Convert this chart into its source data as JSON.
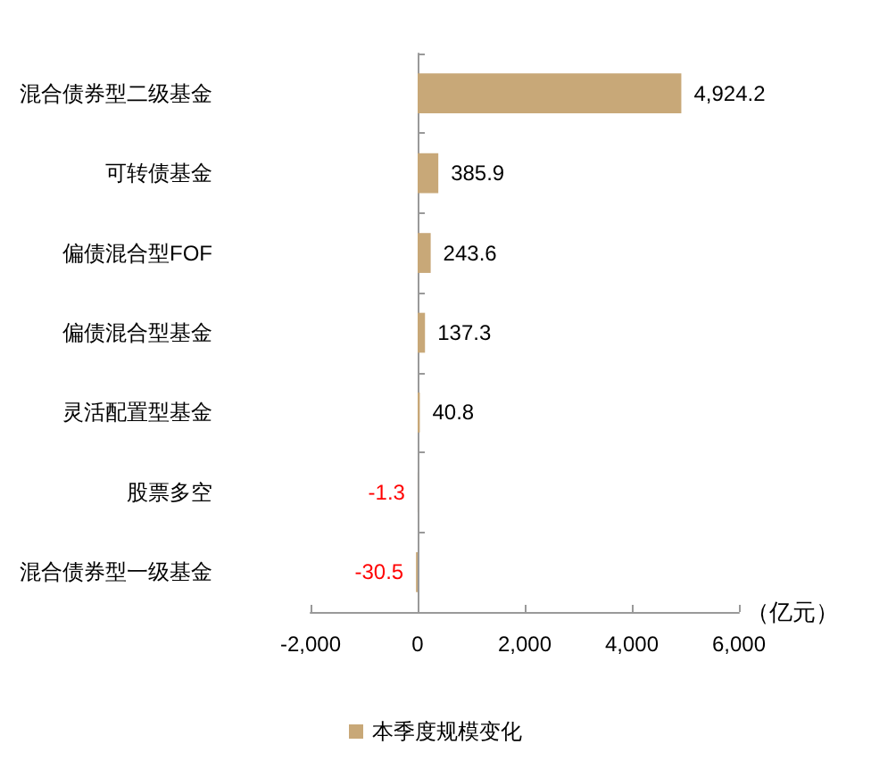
{
  "chart_data": {
    "type": "bar",
    "orientation": "horizontal",
    "categories": [
      "混合债券型二级基金",
      "可转债基金",
      "偏债混合型FOF",
      "偏债混合型基金",
      "灵活配置型基金",
      "股票多空",
      "混合债券型一级基金"
    ],
    "series": [
      {
        "name": "本季度规模变化",
        "color": "#c8a878",
        "values": [
          4924.2,
          385.9,
          243.6,
          137.3,
          40.8,
          -1.3,
          -30.5
        ],
        "value_labels": [
          "4,924.2",
          "385.9",
          "243.6",
          "137.3",
          "40.8",
          "-1.3",
          "-30.5"
        ]
      }
    ],
    "xlim": [
      -2000,
      6000
    ],
    "xticks": [
      {
        "value": -2000,
        "label": "-2,000"
      },
      0,
      {
        "value": 2000,
        "label": "2,000"
      },
      {
        "value": 4000,
        "label": "4,000"
      },
      {
        "value": 6000,
        "label": "6,000"
      }
    ],
    "xlabel": "（亿元）",
    "legend": "bottom"
  }
}
